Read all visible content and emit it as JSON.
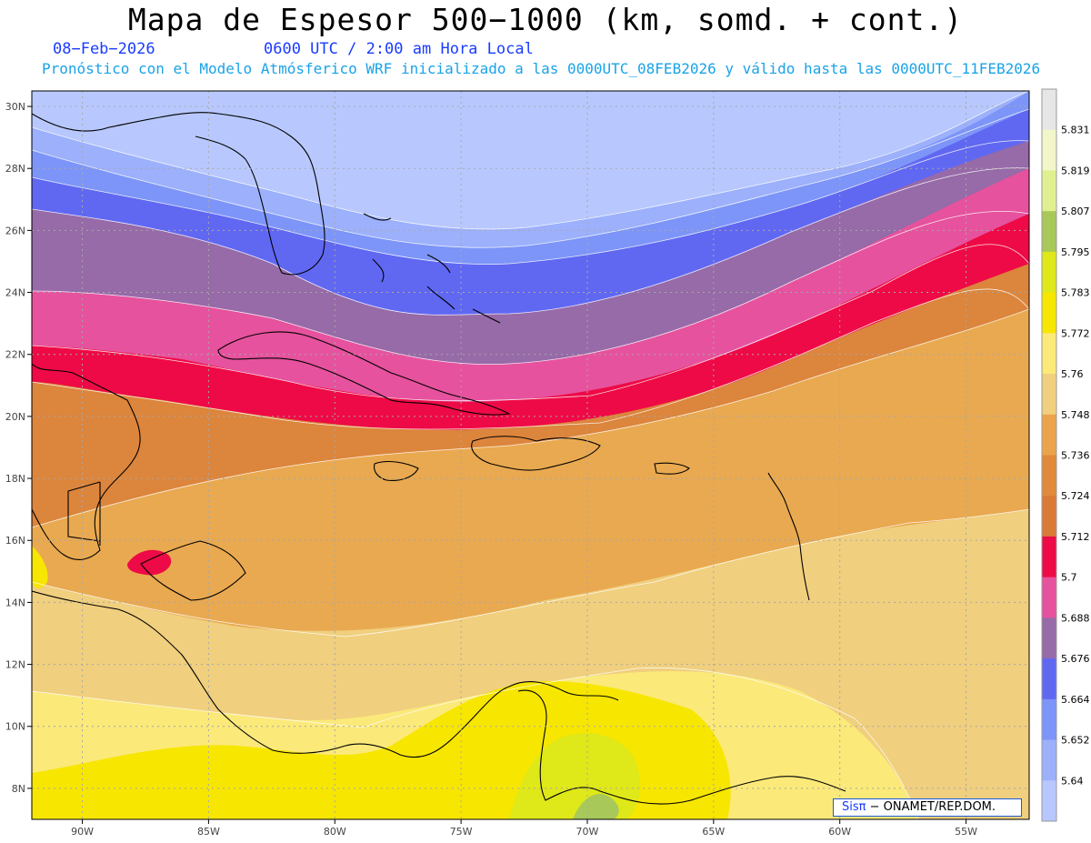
{
  "header": {
    "title": "Mapa de Espesor 500−1000 (km, somd. + cont.)",
    "date": "08−Feb−2026",
    "time": "0600 UTC / 2:00 am Hora Local",
    "subtitle": "Pronóstico con el Modelo Atmósferico WRF inicializado a las 0000UTC_08FEB2026 y válido hasta las  0000UTC_11FEB2026"
  },
  "credit": {
    "brand": "Sisπ",
    "org": "− ONAMET/REP.DOM."
  },
  "map": {
    "region": "Caribbean Sea / Gulf of Mexico",
    "lat_range": [
      7,
      30.5
    ],
    "lon_range": [
      -92,
      -52.5
    ],
    "lat_ticks": [
      "30N",
      "28N",
      "26N",
      "24N",
      "22N",
      "20N",
      "18N",
      "16N",
      "14N",
      "12N",
      "10N",
      "8N"
    ],
    "lon_ticks": [
      "90W",
      "85W",
      "80W",
      "75W",
      "70W",
      "65W",
      "60W",
      "55W"
    ],
    "grid": true,
    "field": "500-1000 hPa thickness",
    "units": "km"
  },
  "colorbar": {
    "labels": [
      "5.831",
      "5.819",
      "5.807",
      "5.795",
      "5.783",
      "5.772",
      "5.76",
      "5.748",
      "5.736",
      "5.724",
      "5.712",
      "5.7",
      "5.688",
      "5.676",
      "5.664",
      "5.652",
      "5.64"
    ],
    "colors": [
      "#e6e6e6",
      "#f2f6c8",
      "#e0f090",
      "#a8c85a",
      "#dfe818",
      "#f7e600",
      "#fbe97a",
      "#f0cf7e",
      "#eca44c",
      "#e08a3c",
      "#d97b37",
      "#ee0a46",
      "#e6529e",
      "#976aa8",
      "#6068f2",
      "#7d95f8",
      "#9cb0fc",
      "#b8c8fe"
    ]
  }
}
